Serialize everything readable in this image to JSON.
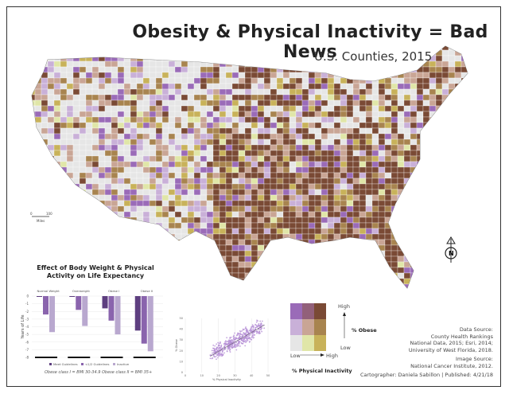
{
  "title": "Obesity & Physical Inactivity = Bad News",
  "subtitle": "U.S. Counties, 2015",
  "legend": {
    "y_label": "% Obese",
    "x_label": "% Physical Inactivity",
    "high": "High",
    "low": "Low",
    "x_low": "Low",
    "x_high": "High",
    "colors": [
      [
        "#9a6bb8",
        "#92607a",
        "#7a4a35"
      ],
      [
        "#c9b0d8",
        "#c9a595",
        "#a8844f"
      ],
      [
        "#e6e6e6",
        "#e0e6a8",
        "#c8b25a"
      ]
    ]
  },
  "scale_bar": {
    "start": "0",
    "end": "100",
    "unit": "Miles"
  },
  "north_arrow": "N",
  "credits": {
    "data_source": [
      "Data Source:",
      "County Health Rankings",
      "National Data, 2015; Esri, 2014;",
      "University of West Florida, 2018."
    ],
    "image_source": [
      "Image Source:",
      "National Cancer Institute, 2012."
    ],
    "cartographer": "Cartographer: Daniela Sabillon  |  Published: 4/21/18"
  },
  "chart_data": [
    {
      "type": "bar",
      "title": "Effect of Body Weight & Physical Activity on Life Expectancy",
      "ylabel": "Years of Life",
      "ylim": [
        -8,
        0
      ],
      "yticks": [
        "0",
        "-1",
        "-2",
        "-3",
        "-4",
        "-5",
        "-6",
        "-7",
        "-8"
      ],
      "categories": [
        "Normal Weight",
        "Overweight",
        "Obese I",
        "Obese II"
      ],
      "series": [
        {
          "name": "Meet Guidelines",
          "values": [
            0,
            0,
            -1.6,
            -4.5
          ],
          "color": "#5e3f80"
        },
        {
          "name": "<1/2 Guidelines",
          "values": [
            -2.4,
            -1.8,
            -3.2,
            -6.2
          ],
          "color": "#8a64ad"
        },
        {
          "name": "Inactive",
          "values": [
            -4.7,
            -3.9,
            -5.0,
            -7.2
          ],
          "color": "#b9a8cf"
        }
      ],
      "note": "Obese class I = BMI 30-34.9  Obese class II = BMI 35+"
    },
    {
      "type": "scatter",
      "xlabel": "% Physical Inactivity",
      "ylabel": "% Obese",
      "xlim": [
        0,
        50
      ],
      "ylim": [
        0,
        50
      ],
      "xticks": [
        "0",
        "10",
        "20",
        "30",
        "40",
        "50"
      ],
      "yticks": [
        "0",
        "10",
        "20",
        "30",
        "40",
        "50"
      ],
      "trendline": [
        [
          15,
          15
        ],
        [
          48,
          44
        ]
      ],
      "color": "#b58fd6"
    }
  ]
}
